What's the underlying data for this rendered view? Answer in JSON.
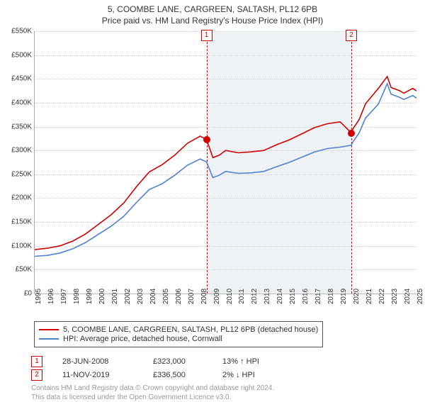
{
  "title": "5, COOMBE LANE, CARGREEN, SALTASH, PL12 6PB",
  "subtitle": "Price paid vs. HM Land Registry's House Price Index (HPI)",
  "chart": {
    "type": "line",
    "background_color": "#ffffff",
    "grid_color": "#d0d0d0",
    "shade_color": "#eef2f5",
    "y": {
      "min": 0,
      "max": 550,
      "step": 50,
      "labels": [
        "£0",
        "£50K",
        "£100K",
        "£150K",
        "£200K",
        "£250K",
        "£300K",
        "£350K",
        "£400K",
        "£450K",
        "£500K",
        "£550K"
      ]
    },
    "x": {
      "min": 1995,
      "max": 2025,
      "labels": [
        "1995",
        "1996",
        "1997",
        "1998",
        "1999",
        "2000",
        "2001",
        "2002",
        "2003",
        "2004",
        "2005",
        "2006",
        "2007",
        "2008",
        "2009",
        "2010",
        "2011",
        "2012",
        "2013",
        "2014",
        "2015",
        "2016",
        "2017",
        "2018",
        "2019",
        "2020",
        "2021",
        "2022",
        "2023",
        "2024",
        "2025"
      ]
    },
    "series": [
      {
        "name": "5, COOMBE LANE, CARGREEN, SALTASH, PL12 6PB (detached house)",
        "color": "#d00000",
        "width": 1.8,
        "data": [
          [
            1995,
            92
          ],
          [
            1996,
            95
          ],
          [
            1997,
            100
          ],
          [
            1998,
            110
          ],
          [
            1999,
            125
          ],
          [
            2000,
            145
          ],
          [
            2001,
            165
          ],
          [
            2002,
            190
          ],
          [
            2003,
            224
          ],
          [
            2004,
            255
          ],
          [
            2005,
            270
          ],
          [
            2006,
            290
          ],
          [
            2007,
            315
          ],
          [
            2008,
            330
          ],
          [
            2008.5,
            323
          ],
          [
            2009,
            285
          ],
          [
            2009.5,
            290
          ],
          [
            2010,
            300
          ],
          [
            2011,
            295
          ],
          [
            2012,
            297
          ],
          [
            2013,
            300
          ],
          [
            2014,
            312
          ],
          [
            2015,
            322
          ],
          [
            2016,
            335
          ],
          [
            2017,
            348
          ],
          [
            2018,
            356
          ],
          [
            2019,
            360
          ],
          [
            2019.88,
            336.5
          ],
          [
            2020,
            345
          ],
          [
            2020.5,
            365
          ],
          [
            2021,
            398
          ],
          [
            2022,
            430
          ],
          [
            2022.7,
            455
          ],
          [
            2023,
            432
          ],
          [
            2023.7,
            425
          ],
          [
            2024,
            420
          ],
          [
            2024.7,
            430
          ],
          [
            2025,
            425
          ]
        ]
      },
      {
        "name": "HPI: Average price, detached house, Cornwall",
        "color": "#5080d0",
        "width": 1.4,
        "data": [
          [
            1995,
            78
          ],
          [
            1996,
            80
          ],
          [
            1997,
            85
          ],
          [
            1998,
            94
          ],
          [
            1999,
            107
          ],
          [
            2000,
            124
          ],
          [
            2001,
            141
          ],
          [
            2002,
            162
          ],
          [
            2003,
            191
          ],
          [
            2004,
            218
          ],
          [
            2005,
            230
          ],
          [
            2006,
            248
          ],
          [
            2007,
            269
          ],
          [
            2008,
            282
          ],
          [
            2008.5,
            276
          ],
          [
            2009,
            243
          ],
          [
            2009.5,
            248
          ],
          [
            2010,
            256
          ],
          [
            2011,
            252
          ],
          [
            2012,
            253
          ],
          [
            2013,
            256
          ],
          [
            2014,
            266
          ],
          [
            2015,
            275
          ],
          [
            2016,
            286
          ],
          [
            2017,
            297
          ],
          [
            2018,
            304
          ],
          [
            2019,
            307
          ],
          [
            2019.88,
            311
          ],
          [
            2020,
            318
          ],
          [
            2020.5,
            337
          ],
          [
            2021,
            368
          ],
          [
            2022,
            397
          ],
          [
            2022.7,
            440
          ],
          [
            2023,
            418
          ],
          [
            2023.7,
            411
          ],
          [
            2024,
            407
          ],
          [
            2024.7,
            415
          ],
          [
            2025,
            410
          ]
        ]
      }
    ],
    "events": [
      {
        "index": "1",
        "year": 2008.5,
        "value": 323,
        "date": "28-JUN-2008",
        "price": "£323,000",
        "pct": "13%",
        "arrow": "↑",
        "label": "HPI"
      },
      {
        "index": "2",
        "year": 2019.88,
        "value": 336.5,
        "date": "11-NOV-2019",
        "price": "£336,500",
        "pct": "2%",
        "arrow": "↓",
        "label": "HPI"
      }
    ],
    "shade_from": 2008.5,
    "shade_to": 2019.88
  },
  "footer_line1": "Contains HM Land Registry data © Crown copyright and database right 2024.",
  "footer_line2": "This data is licensed under the Open Government Licence v3.0."
}
